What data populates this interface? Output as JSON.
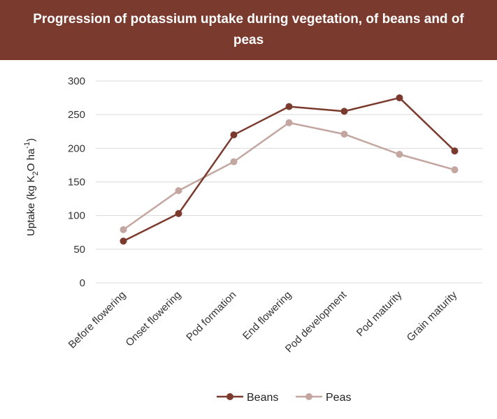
{
  "chart_data": {
    "type": "line",
    "title": "Progression of potassium uptake during vegetation, of beans and of peas",
    "ylabel": {
      "prefix": "Uptake (kg K",
      "sub": "2",
      "mid": "O ha",
      "sup": "-1",
      "suffix": ")"
    },
    "xlabel": "",
    "ylim": [
      0,
      300
    ],
    "yticks": [
      0,
      50,
      100,
      150,
      200,
      250,
      300
    ],
    "grid": true,
    "legend_position": "bottom",
    "categories": [
      "Before flowering",
      "Onset flowering",
      "Pod formation",
      "End flowering",
      "Pod development",
      "Pod maturity",
      "Grain maturity"
    ],
    "series": [
      {
        "name": "Beans",
        "color": "#7b3a2e",
        "values": [
          62,
          103,
          220,
          262,
          255,
          275,
          196
        ]
      },
      {
        "name": "Peas",
        "color": "#c4a6a1",
        "values": [
          79,
          137,
          180,
          238,
          221,
          191,
          168
        ]
      }
    ]
  }
}
